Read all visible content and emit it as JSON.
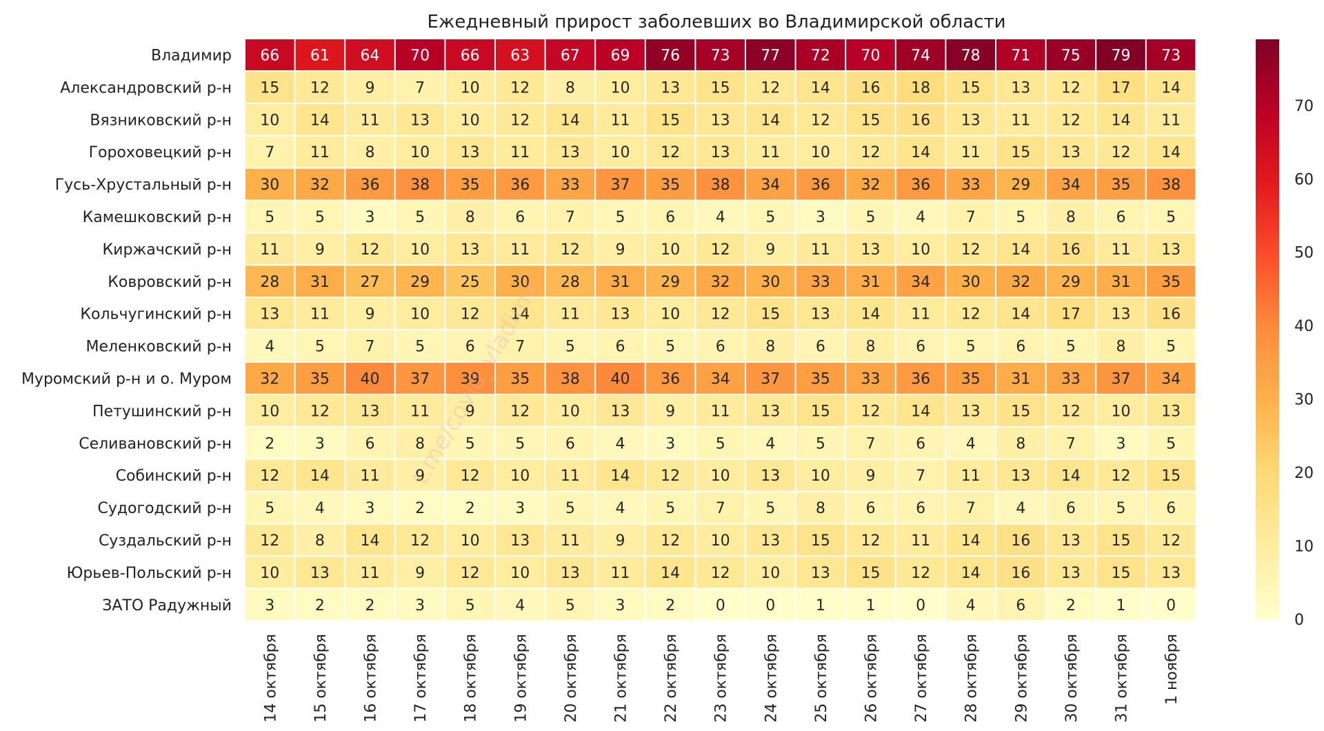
{
  "chart_data": {
    "type": "heatmap",
    "title": "Ежедневный прирост заболевших во Владимирской области",
    "watermark": "t.me/covid_vladimir",
    "rows": [
      "Владимир",
      "Александровский р-н",
      "Вязниковский р-н",
      "Гороховецкий р-н",
      "Гусь-Хрустальный р-н",
      "Камешковский р-н",
      "Киржачский р-н",
      "Ковровский р-н",
      "Кольчугинский р-н",
      "Меленковский р-н",
      "Муромский р-н и о. Муром",
      "Петушинский р-н",
      "Селивановский р-н",
      "Собинский р-н",
      "Судогодский р-н",
      "Суздальский р-н",
      "Юрьев-Польский р-н",
      "ЗАТО Радужный"
    ],
    "columns": [
      "14 октября",
      "15 октября",
      "16 октября",
      "17 октября",
      "18 октября",
      "19 октября",
      "20 октября",
      "21 октября",
      "22 октября",
      "23 октября",
      "24 октября",
      "25 октября",
      "26 октября",
      "27 октября",
      "28 октября",
      "29 октября",
      "30 октября",
      "31 октября",
      "1 ноября"
    ],
    "values": [
      [
        66,
        61,
        64,
        70,
        66,
        63,
        67,
        69,
        76,
        73,
        77,
        72,
        70,
        74,
        78,
        71,
        75,
        79,
        73
      ],
      [
        15,
        12,
        9,
        7,
        10,
        12,
        8,
        10,
        13,
        15,
        12,
        14,
        16,
        18,
        15,
        13,
        12,
        17,
        14
      ],
      [
        10,
        14,
        11,
        13,
        10,
        12,
        14,
        11,
        15,
        13,
        14,
        12,
        15,
        16,
        13,
        11,
        12,
        14,
        11
      ],
      [
        7,
        11,
        8,
        10,
        13,
        11,
        13,
        10,
        12,
        13,
        11,
        10,
        12,
        14,
        11,
        15,
        13,
        12,
        14
      ],
      [
        30,
        32,
        36,
        38,
        35,
        36,
        33,
        37,
        35,
        38,
        34,
        36,
        32,
        36,
        33,
        29,
        34,
        35,
        38
      ],
      [
        5,
        5,
        3,
        5,
        8,
        6,
        7,
        5,
        6,
        4,
        5,
        3,
        5,
        4,
        7,
        5,
        8,
        6,
        5
      ],
      [
        11,
        9,
        12,
        10,
        13,
        11,
        12,
        9,
        10,
        12,
        9,
        11,
        13,
        10,
        12,
        14,
        16,
        11,
        13
      ],
      [
        28,
        31,
        27,
        29,
        25,
        30,
        28,
        31,
        29,
        32,
        30,
        33,
        31,
        34,
        30,
        32,
        29,
        31,
        35
      ],
      [
        13,
        11,
        9,
        10,
        12,
        14,
        11,
        13,
        10,
        12,
        15,
        13,
        14,
        11,
        12,
        14,
        17,
        13,
        16
      ],
      [
        4,
        5,
        7,
        5,
        6,
        7,
        5,
        6,
        5,
        6,
        8,
        6,
        8,
        6,
        5,
        6,
        5,
        8,
        5
      ],
      [
        32,
        35,
        40,
        37,
        39,
        35,
        38,
        40,
        36,
        34,
        37,
        35,
        33,
        36,
        35,
        31,
        33,
        37,
        34
      ],
      [
        10,
        12,
        13,
        11,
        9,
        12,
        10,
        13,
        9,
        11,
        13,
        15,
        12,
        14,
        13,
        15,
        12,
        10,
        13
      ],
      [
        2,
        3,
        6,
        8,
        5,
        5,
        6,
        4,
        3,
        5,
        4,
        5,
        7,
        6,
        4,
        8,
        7,
        3,
        5
      ],
      [
        12,
        14,
        11,
        9,
        12,
        10,
        11,
        14,
        12,
        10,
        13,
        10,
        9,
        7,
        11,
        13,
        14,
        12,
        15
      ],
      [
        5,
        4,
        3,
        2,
        2,
        3,
        5,
        4,
        5,
        7,
        5,
        8,
        6,
        6,
        7,
        4,
        6,
        5,
        6
      ],
      [
        12,
        8,
        14,
        12,
        10,
        13,
        11,
        9,
        12,
        10,
        13,
        15,
        12,
        11,
        14,
        16,
        13,
        15,
        12
      ],
      [
        10,
        13,
        11,
        9,
        12,
        10,
        13,
        11,
        14,
        12,
        10,
        13,
        15,
        12,
        14,
        16,
        13,
        15,
        13
      ],
      [
        3,
        2,
        2,
        3,
        5,
        4,
        5,
        3,
        2,
        0,
        0,
        1,
        1,
        0,
        4,
        6,
        2,
        1,
        0
      ]
    ],
    "colorbar": {
      "min": 0,
      "max": 79,
      "ticks": [
        "0",
        "10",
        "20",
        "30",
        "40",
        "50",
        "60",
        "70"
      ],
      "colormap": "YlOrRd",
      "stops": [
        "#ffffcc",
        "#ffeda0",
        "#fed976",
        "#feb24c",
        "#fd8d3c",
        "#fc4e2a",
        "#e31a1c",
        "#bd0026",
        "#800026"
      ]
    }
  }
}
